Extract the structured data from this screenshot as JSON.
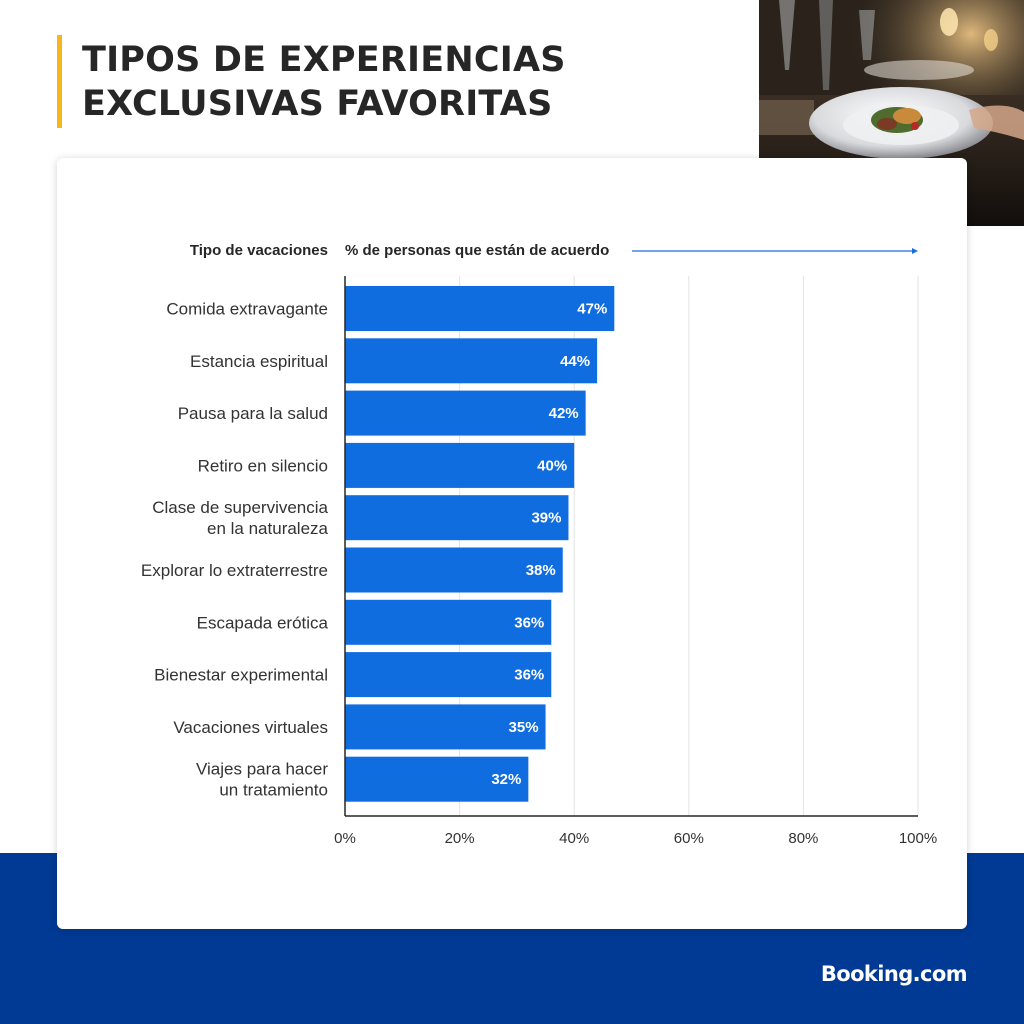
{
  "page": {
    "title_lines": [
      "TIPOS DE EXPERIENCIAS",
      "EXCLUSIVAS FAVORITAS"
    ],
    "brand": "Booking.com",
    "colors": {
      "accent": "#f4b81c",
      "band": "#003a94",
      "bar": "#0f6ddf",
      "title": "#262626"
    },
    "photo_icon": "restaurant-dinner-photo"
  },
  "chart_data": {
    "type": "bar",
    "orientation": "horizontal",
    "category_header": "Tipo de vacaciones",
    "value_header": "% de personas que están de acuerdo",
    "categories": [
      [
        "Comida extravagante"
      ],
      [
        "Estancia espiritual"
      ],
      [
        "Pausa para la salud"
      ],
      [
        "Retiro en silencio"
      ],
      [
        "Clase de supervivencia",
        "en la naturaleza"
      ],
      [
        "Explorar lo extraterrestre"
      ],
      [
        "Escapada erótica"
      ],
      [
        "Bienestar experimental"
      ],
      [
        "Vacaciones virtuales"
      ],
      [
        "Viajes para hacer",
        "un tratamiento"
      ]
    ],
    "values": [
      47,
      44,
      42,
      40,
      39,
      38,
      36,
      36,
      35,
      32
    ],
    "data_labels": [
      "47%",
      "44%",
      "42%",
      "40%",
      "39%",
      "38%",
      "36%",
      "36%",
      "35%",
      "32%"
    ],
    "xlim": [
      0,
      100
    ],
    "xticks": [
      0,
      20,
      40,
      60,
      80,
      100
    ],
    "xtick_labels": [
      "0%",
      "20%",
      "40%",
      "60%",
      "80%",
      "100%"
    ],
    "grid": true
  }
}
